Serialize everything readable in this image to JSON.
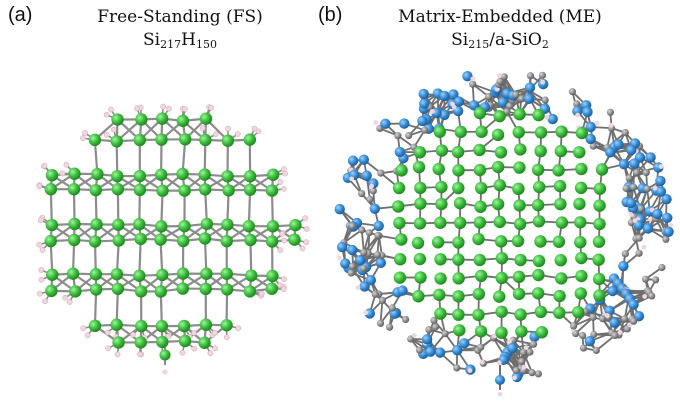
{
  "figure": {
    "panel_a": {
      "letter": "(a)",
      "title_line1": "Free-Standing (FS)",
      "formula": {
        "base1": "Si",
        "sub1": "217",
        "base2": "H",
        "sub2": "150"
      }
    },
    "panel_b": {
      "letter": "(b)",
      "title_line1": "Matrix-Embedded (ME)",
      "formula": {
        "base1": "Si",
        "sub1": "215",
        "mid": "/a-SiO",
        "sub2": "2"
      }
    }
  },
  "colors": {
    "silicon": "#3fbf3f",
    "silicon_dark": "#1f8a1f",
    "hydrogen": "#f1d6de",
    "oxygen": "#3a8fd6",
    "oxygen_dark": "#1e5f9e",
    "bond": "#8c8c8c",
    "matrix_si": "#8a8a8a"
  }
}
